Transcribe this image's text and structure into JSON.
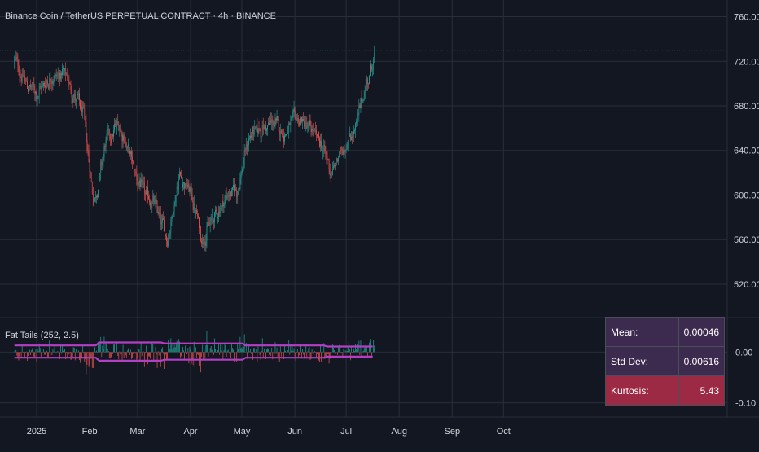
{
  "title": "Binance Coin / TetherUS PERPETUAL CONTRACT · 4h · BINANCE",
  "indicator_label": "Fat Tails (252, 2.5)",
  "colors": {
    "background": "#131722",
    "grid": "#2a2e39",
    "up": "#26a69a",
    "down": "#ef5350",
    "band": "#b33fc7",
    "last_price_line": "#26a69a",
    "axis_text": "#d1d4dc"
  },
  "stats_table": [
    {
      "label": "Mean:",
      "value": "0.00046"
    },
    {
      "label": "Std Dev:",
      "value": "0.00616"
    },
    {
      "label": "Kurtosis:",
      "value": "5.43"
    }
  ],
  "chart_data": [
    {
      "type": "candlestick",
      "title": "Binance Coin / TetherUS PERPETUAL CONTRACT · 4h · BINANCE",
      "x_ticks": [
        "2025",
        "Feb",
        "Mar",
        "Apr",
        "May",
        "Jun",
        "Jul",
        "Aug",
        "Sep",
        "Oct"
      ],
      "y_ticks": [
        "760.00",
        "720.00",
        "680.00",
        "640.00",
        "600.00",
        "560.00",
        "520.00"
      ],
      "ylim": [
        490,
        775
      ],
      "last_price": 730,
      "grid": true,
      "trend": {
        "dates": [
          "2024-12-19",
          "2024-12-25",
          "2025-01-01",
          "2025-01-07",
          "2025-01-15",
          "2025-01-21",
          "2025-01-28",
          "2025-02-03",
          "2025-02-10",
          "2025-02-18",
          "2025-02-25",
          "2025-03-04",
          "2025-03-11",
          "2025-03-18",
          "2025-03-25",
          "2025-04-01",
          "2025-04-07",
          "2025-04-14",
          "2025-04-22",
          "2025-04-28",
          "2025-05-05",
          "2025-05-12",
          "2025-05-19",
          "2025-05-26",
          "2025-06-02",
          "2025-06-09",
          "2025-06-16",
          "2025-06-22",
          "2025-06-29",
          "2025-07-06",
          "2025-07-12",
          "2025-07-18"
        ],
        "close": [
          720,
          700,
          690,
          705,
          710,
          695,
          670,
          590,
          650,
          665,
          630,
          600,
          590,
          560,
          620,
          600,
          560,
          580,
          600,
          605,
          655,
          660,
          665,
          655,
          670,
          660,
          645,
          620,
          645,
          660,
          700,
          730
        ]
      }
    },
    {
      "type": "bar",
      "title": "Fat Tails (252, 2.5)",
      "y_ticks": [
        "0.00",
        "-0.10"
      ],
      "ylim": [
        -0.128,
        0.068
      ]
    }
  ]
}
